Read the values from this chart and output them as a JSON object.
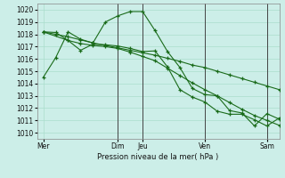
{
  "bg_color": "#cceee8",
  "grid_color": "#aaddcc",
  "line_color": "#1a6b1a",
  "ylabel_text": "Pression niveau de la mer( hPa )",
  "ylim": [
    1009.5,
    1020.5
  ],
  "yticks": [
    1010,
    1011,
    1012,
    1013,
    1014,
    1015,
    1016,
    1017,
    1018,
    1019,
    1020
  ],
  "xtick_labels": [
    "Mer",
    "Dim",
    "Jeu",
    "Ven",
    "Sam"
  ],
  "xtick_positions": [
    0,
    12,
    16,
    26,
    36
  ],
  "vlines": [
    12,
    16,
    26,
    36
  ],
  "xlim": [
    -1,
    38
  ],
  "series": [
    {
      "x": [
        0,
        2,
        4,
        6,
        8,
        10,
        12,
        14,
        16,
        18,
        20,
        22,
        24,
        26,
        28,
        30,
        32,
        34,
        36,
        38
      ],
      "y": [
        1014.5,
        1016.1,
        1018.2,
        1017.6,
        1017.3,
        1019.0,
        1019.5,
        1019.85,
        1019.85,
        1018.3,
        1016.6,
        1015.3,
        1013.6,
        1013.1,
        1013.0,
        1011.8,
        1011.6,
        1010.55,
        1011.55,
        1011.1
      ]
    },
    {
      "x": [
        0,
        2,
        4,
        6,
        8,
        10,
        12,
        14,
        16,
        18,
        20,
        22,
        24,
        26,
        28,
        30,
        32,
        34,
        36,
        38
      ],
      "y": [
        1018.2,
        1018.15,
        1017.5,
        1017.25,
        1017.1,
        1017.0,
        1016.85,
        1016.55,
        1016.2,
        1015.85,
        1015.25,
        1014.65,
        1014.05,
        1013.5,
        1013.0,
        1012.45,
        1011.9,
        1011.4,
        1011.0,
        1010.6
      ]
    },
    {
      "x": [
        0,
        4,
        6,
        8,
        10,
        12,
        14,
        16,
        18,
        20,
        22,
        24,
        26,
        28,
        30,
        32,
        34,
        36,
        38
      ],
      "y": [
        1018.2,
        1017.5,
        1016.7,
        1017.2,
        1017.15,
        1017.05,
        1016.85,
        1016.6,
        1016.65,
        1015.35,
        1013.5,
        1012.9,
        1012.5,
        1011.75,
        1011.5,
        1011.5,
        1011.05,
        1010.55,
        1011.2
      ]
    },
    {
      "x": [
        0,
        2,
        4,
        6,
        8,
        10,
        12,
        14,
        16,
        18,
        20,
        22,
        24,
        26,
        28,
        30,
        32,
        34,
        36,
        38
      ],
      "y": [
        1018.2,
        1018.0,
        1017.8,
        1017.55,
        1017.3,
        1017.1,
        1016.9,
        1016.7,
        1016.5,
        1016.3,
        1016.05,
        1015.8,
        1015.5,
        1015.3,
        1015.0,
        1014.7,
        1014.4,
        1014.1,
        1013.8,
        1013.5
      ]
    }
  ]
}
